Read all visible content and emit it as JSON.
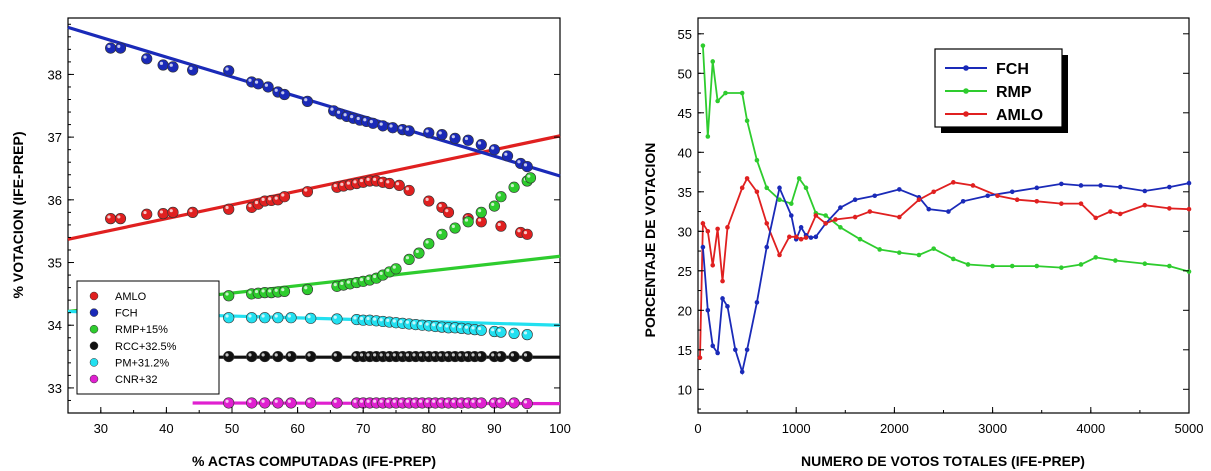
{
  "chart_data": [
    {
      "type": "scatter",
      "xlabel": "% ACTAS COMPUTADAS (IFE-PREP)",
      "ylabel": "% VOTACION (IFE-PREP)",
      "xlim": [
        25,
        100
      ],
      "ylim": [
        32.6,
        38.9
      ],
      "xticks": [
        "30",
        "40",
        "50",
        "60",
        "70",
        "80",
        "90",
        "100"
      ],
      "yticks": [
        "33",
        "34",
        "35",
        "36",
        "37",
        "38"
      ],
      "grid": false,
      "legend_position": "bottom-left",
      "series": [
        {
          "name": "AMLO",
          "color": "#e02020",
          "x": [
            31.5,
            33,
            37,
            39.5,
            41,
            44,
            49.5,
            53,
            54,
            55,
            56,
            57,
            58,
            61.5,
            66,
            67,
            68,
            69,
            70,
            71,
            72,
            73,
            74,
            75.5,
            77,
            80,
            82,
            83,
            86,
            88,
            91,
            94,
            95
          ],
          "y": [
            35.7,
            35.7,
            35.77,
            35.78,
            35.8,
            35.8,
            35.85,
            35.88,
            35.93,
            35.98,
            35.99,
            36.0,
            36.05,
            36.13,
            36.2,
            36.22,
            36.24,
            36.26,
            36.28,
            36.3,
            36.3,
            36.28,
            36.26,
            36.23,
            36.15,
            35.98,
            35.88,
            35.8,
            35.7,
            35.65,
            35.58,
            35.48,
            35.45
          ],
          "trend": [
            [
              25,
              35.37
            ],
            [
              100,
              37.02
            ]
          ]
        },
        {
          "name": "FCH",
          "color": "#1a2ab8",
          "x": [
            31.5,
            33,
            37,
            39.5,
            41,
            44,
            49.5,
            53,
            54,
            55.5,
            57,
            58,
            61.5,
            65.5,
            66.5,
            67.5,
            68.5,
            69.5,
            70.5,
            71.5,
            73,
            74.5,
            76,
            77,
            80,
            82,
            84,
            86,
            88,
            90,
            92,
            94,
            95
          ],
          "y": [
            38.42,
            38.42,
            38.25,
            38.15,
            38.12,
            38.07,
            38.06,
            37.88,
            37.85,
            37.8,
            37.72,
            37.68,
            37.57,
            37.42,
            37.37,
            37.33,
            37.3,
            37.27,
            37.25,
            37.22,
            37.18,
            37.15,
            37.12,
            37.1,
            37.07,
            37.04,
            36.98,
            36.95,
            36.88,
            36.8,
            36.7,
            36.58,
            36.53
          ],
          "trend": [
            [
              25,
              38.75
            ],
            [
              100,
              36.38
            ]
          ]
        },
        {
          "name": "RMP+15%",
          "color": "#2ecc2e",
          "x": [
            49.5,
            53,
            54,
            55,
            56,
            57,
            58,
            61.5,
            66,
            67,
            68,
            69,
            70,
            71,
            72,
            73,
            74,
            75,
            77,
            78.5,
            80,
            82,
            84,
            86,
            88,
            90,
            91,
            93,
            95,
            95.5
          ],
          "y": [
            34.47,
            34.5,
            34.51,
            34.52,
            34.52,
            34.53,
            34.54,
            34.57,
            34.62,
            34.64,
            34.66,
            34.68,
            34.7,
            34.72,
            34.75,
            34.8,
            34.85,
            34.9,
            35.05,
            35.15,
            35.3,
            35.45,
            35.55,
            35.65,
            35.8,
            35.9,
            36.05,
            36.2,
            36.3,
            36.35
          ],
          "trend": [
            [
              25,
              34.22
            ],
            [
              100,
              35.1
            ]
          ]
        },
        {
          "name": "RCC+32.5%",
          "color": "#111111",
          "x": [
            49.5,
            53,
            55,
            57,
            59,
            62,
            66,
            69,
            70,
            71,
            72,
            73,
            74,
            75,
            76,
            77,
            78,
            79,
            80,
            81,
            82,
            83,
            84,
            85,
            86,
            87,
            88,
            90,
            91,
            93,
            95
          ],
          "y": [
            33.5,
            33.5,
            33.5,
            33.5,
            33.5,
            33.5,
            33.5,
            33.5,
            33.5,
            33.5,
            33.5,
            33.5,
            33.5,
            33.5,
            33.5,
            33.5,
            33.5,
            33.5,
            33.5,
            33.5,
            33.5,
            33.5,
            33.5,
            33.5,
            33.5,
            33.5,
            33.5,
            33.5,
            33.5,
            33.5,
            33.5
          ],
          "trend": [
            [
              44,
              33.49
            ],
            [
              100,
              33.49
            ]
          ]
        },
        {
          "name": "PM+31.2%",
          "color": "#22e0f0",
          "x": [
            49.5,
            53,
            55,
            57,
            59,
            62,
            66,
            69,
            70,
            71,
            72,
            73,
            74,
            75,
            76,
            77,
            78,
            79,
            80,
            81,
            82,
            83,
            84,
            85,
            86,
            87,
            88,
            90,
            91,
            93,
            95
          ],
          "y": [
            34.12,
            34.12,
            34.12,
            34.12,
            34.12,
            34.11,
            34.1,
            34.09,
            34.08,
            34.08,
            34.07,
            34.06,
            34.05,
            34.04,
            34.03,
            34.02,
            34.01,
            34.0,
            33.99,
            33.98,
            33.97,
            33.96,
            33.96,
            33.95,
            33.94,
            33.93,
            33.92,
            33.9,
            33.89,
            33.87,
            33.85
          ],
          "trend": [
            [
              25,
              34.22
            ],
            [
              100,
              34.0
            ]
          ]
        },
        {
          "name": "CNR+32",
          "color": "#e020d0",
          "x": [
            49.5,
            53,
            55,
            57,
            59,
            62,
            66,
            69,
            70,
            71,
            72,
            73,
            74,
            75,
            76,
            77,
            78,
            79,
            80,
            81,
            82,
            83,
            84,
            85,
            86,
            87,
            88,
            90,
            91,
            93,
            95
          ],
          "y": [
            32.76,
            32.76,
            32.76,
            32.76,
            32.76,
            32.76,
            32.76,
            32.76,
            32.76,
            32.76,
            32.76,
            32.76,
            32.76,
            32.76,
            32.76,
            32.76,
            32.76,
            32.76,
            32.76,
            32.76,
            32.76,
            32.76,
            32.76,
            32.76,
            32.76,
            32.76,
            32.76,
            32.76,
            32.76,
            32.76,
            32.75
          ],
          "trend": [
            [
              44,
              32.76
            ],
            [
              100,
              32.75
            ]
          ]
        }
      ]
    },
    {
      "type": "line",
      "xlabel": "NUMERO DE VOTOS TOTALES (IFE-PREP)",
      "ylabel": "PORCENTAJE DE VOTACION",
      "xlim": [
        0,
        5000
      ],
      "ylim": [
        7,
        57
      ],
      "xticks": [
        "0",
        "1000",
        "2000",
        "3000",
        "4000",
        "5000"
      ],
      "yticks": [
        "10",
        "15",
        "20",
        "25",
        "30",
        "35",
        "40",
        "45",
        "50",
        "55"
      ],
      "grid": false,
      "legend_position": "top-right",
      "series": [
        {
          "name": "FCH",
          "color": "#1a2ab8",
          "x": [
            50,
            100,
            150,
            200,
            250,
            300,
            380,
            450,
            500,
            600,
            700,
            830,
            950,
            1000,
            1050,
            1100,
            1150,
            1200,
            1300,
            1450,
            1600,
            1800,
            2050,
            2250,
            2350,
            2550,
            2700,
            2950,
            3200,
            3450,
            3700,
            3900,
            4100,
            4300,
            4550,
            4800,
            5000
          ],
          "y": [
            28,
            20,
            15.5,
            14.6,
            21.5,
            20.5,
            15,
            12.2,
            15,
            21,
            28,
            35.5,
            32,
            29,
            30.5,
            29.5,
            29.2,
            29.3,
            31,
            33,
            34,
            34.5,
            35.3,
            34.3,
            32.8,
            32.5,
            33.8,
            34.5,
            35,
            35.5,
            36,
            35.8,
            35.8,
            35.6,
            35.1,
            35.6,
            36.1
          ]
        },
        {
          "name": "RMP",
          "color": "#2ecc2e",
          "x": [
            50,
            100,
            150,
            200,
            280,
            450,
            500,
            600,
            700,
            830,
            950,
            1030,
            1100,
            1200,
            1300,
            1450,
            1650,
            1850,
            2050,
            2250,
            2400,
            2600,
            2750,
            3000,
            3200,
            3450,
            3700,
            3900,
            4050,
            4250,
            4550,
            4800,
            5000
          ],
          "y": [
            53.5,
            42,
            51.5,
            46.5,
            47.5,
            47.5,
            44,
            39,
            35.5,
            34,
            33.5,
            36.7,
            35.5,
            32.3,
            32,
            30.5,
            29,
            27.7,
            27.3,
            27,
            27.8,
            26.5,
            25.8,
            25.6,
            25.6,
            25.6,
            25.4,
            25.8,
            26.7,
            26.3,
            25.9,
            25.6,
            24.9
          ]
        },
        {
          "name": "AMLO",
          "color": "#e02020",
          "x": [
            20,
            50,
            100,
            150,
            200,
            250,
            300,
            450,
            500,
            600,
            700,
            830,
            930,
            1000,
            1050,
            1100,
            1200,
            1300,
            1400,
            1600,
            1750,
            2050,
            2250,
            2400,
            2600,
            2800,
            3050,
            3250,
            3450,
            3700,
            3900,
            4050,
            4200,
            4300,
            4550,
            4800,
            5000
          ],
          "y": [
            14,
            31,
            30,
            25.7,
            30.3,
            23.7,
            30.5,
            35.5,
            36.7,
            35,
            31,
            27,
            29.3,
            29.3,
            29,
            29.2,
            32,
            31,
            31.5,
            31.8,
            32.5,
            31.8,
            34,
            35,
            36.2,
            35.8,
            34.5,
            34,
            33.8,
            33.5,
            33.5,
            31.7,
            32.5,
            32.2,
            33.3,
            32.9,
            32.8
          ]
        }
      ]
    }
  ]
}
